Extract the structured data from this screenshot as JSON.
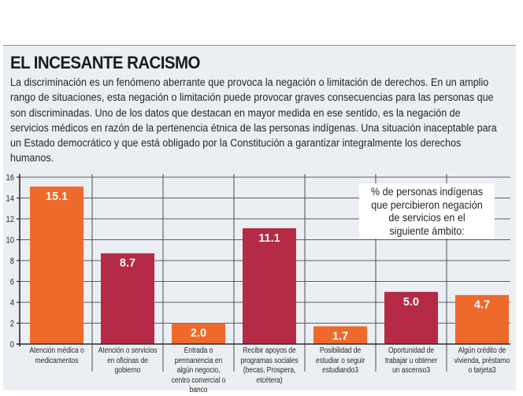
{
  "header": {
    "title": "EL INCESANTE RACISMO",
    "intro": "La discriminación es un fenómeno aberrante que provoca la negación o limitación de derechos. En un amplio rango de situaciones, esta negación o limitación puede provocar graves consecuencias para las personas que son discriminadas. Uno de los datos que destacan en mayor medida en ese sentido, es la negación de servicios médicos en razón de la pertenencia étnica de las personas indígenas. Una situación inaceptable para un Estado democrático y que está obligado por la Constitución a garantizar integralmente los derechos humanos."
  },
  "colors": {
    "orange": "#ee6a2a",
    "crimson": "#b52a45",
    "panel_background": "#ebeff3"
  },
  "chart_data": {
    "type": "bar",
    "title": "",
    "legend_text": "% de personas indígenas que percibieron negación de servicios en el siguiente ámbito:",
    "legend_placement": "top-right",
    "xlabel": "",
    "ylabel": "",
    "ylim": [
      0,
      16
    ],
    "yticks": [
      0,
      2,
      4,
      6,
      8,
      10,
      12,
      14,
      16
    ],
    "grid": true,
    "categories": [
      "Atención médica o medicamentos",
      "Atención o servicios en oficinas de gobierno",
      "Entrada o permanencia en algún negocio, centro comercial o banco",
      "Recibir apoyos de programas sociales (becas, Prospera, etcétera)",
      "Posibilidad de estudiar o seguir estudiando3",
      "Oportunidad de trabajar u obtener un ascenso3",
      "Algún crédito de vivienda, préstamo o tarjeta3"
    ],
    "values": [
      15.1,
      8.7,
      2.0,
      11.1,
      1.7,
      5.0,
      4.7
    ],
    "value_labels": [
      "15.1",
      "8.7",
      "2.0",
      "11.1",
      "1.7",
      "5.0",
      "4.7"
    ],
    "bar_colors": [
      "#ee6a2a",
      "#b52a45",
      "#ee6a2a",
      "#b52a45",
      "#ee6a2a",
      "#b52a45",
      "#ee6a2a"
    ]
  }
}
